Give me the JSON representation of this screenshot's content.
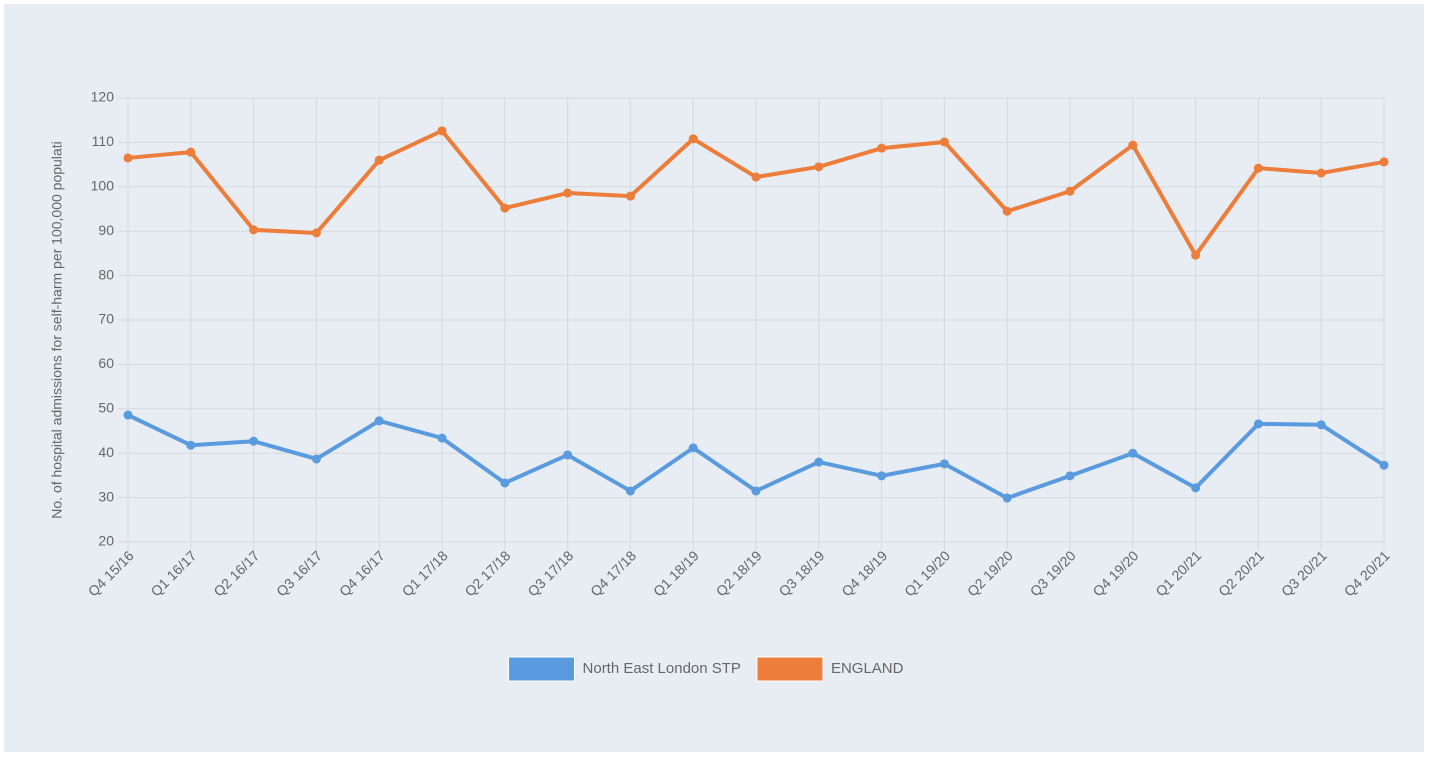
{
  "chart_data": {
    "type": "line",
    "y_label": "No. of hospital admissions for self-harm per 100,000 populati",
    "categories": [
      "Q4 15/16",
      "Q1 16/17",
      "Q2 16/17",
      "Q3 16/17",
      "Q4 16/17",
      "Q1 17/18",
      "Q2 17/18",
      "Q3 17/18",
      "Q4 17/18",
      "Q1 18/19",
      "Q2 18/19",
      "Q3 18/19",
      "Q4 18/19",
      "Q1 19/20",
      "Q2 19/20",
      "Q3 19/20",
      "Q4 19/20",
      "Q1 20/21",
      "Q2 20/21",
      "Q3 20/21",
      "Q4 20/21"
    ],
    "series": [
      {
        "name": "North East London STP",
        "color": "#5a9ade",
        "values": [
          48.6,
          41.8,
          42.7,
          38.7,
          47.3,
          43.4,
          33.3,
          39.6,
          31.5,
          41.2,
          31.5,
          38.0,
          34.9,
          37.6,
          29.9,
          34.9,
          40.0,
          32.2,
          46.6,
          46.4,
          37.3
        ]
      },
      {
        "name": "ENGLAND",
        "color": "#ed7d3a",
        "values": [
          106.5,
          107.8,
          90.3,
          89.6,
          106.0,
          112.6,
          95.2,
          98.6,
          97.9,
          110.8,
          102.2,
          104.5,
          108.7,
          110.1,
          94.5,
          99.0,
          109.4,
          84.6,
          104.2,
          103.1,
          105.6
        ]
      }
    ],
    "ylim": [
      20,
      120
    ],
    "yticks": [
      20,
      30,
      40,
      50,
      60,
      70,
      80,
      90,
      100,
      110,
      120
    ],
    "grid": true,
    "legend": "bottom"
  }
}
